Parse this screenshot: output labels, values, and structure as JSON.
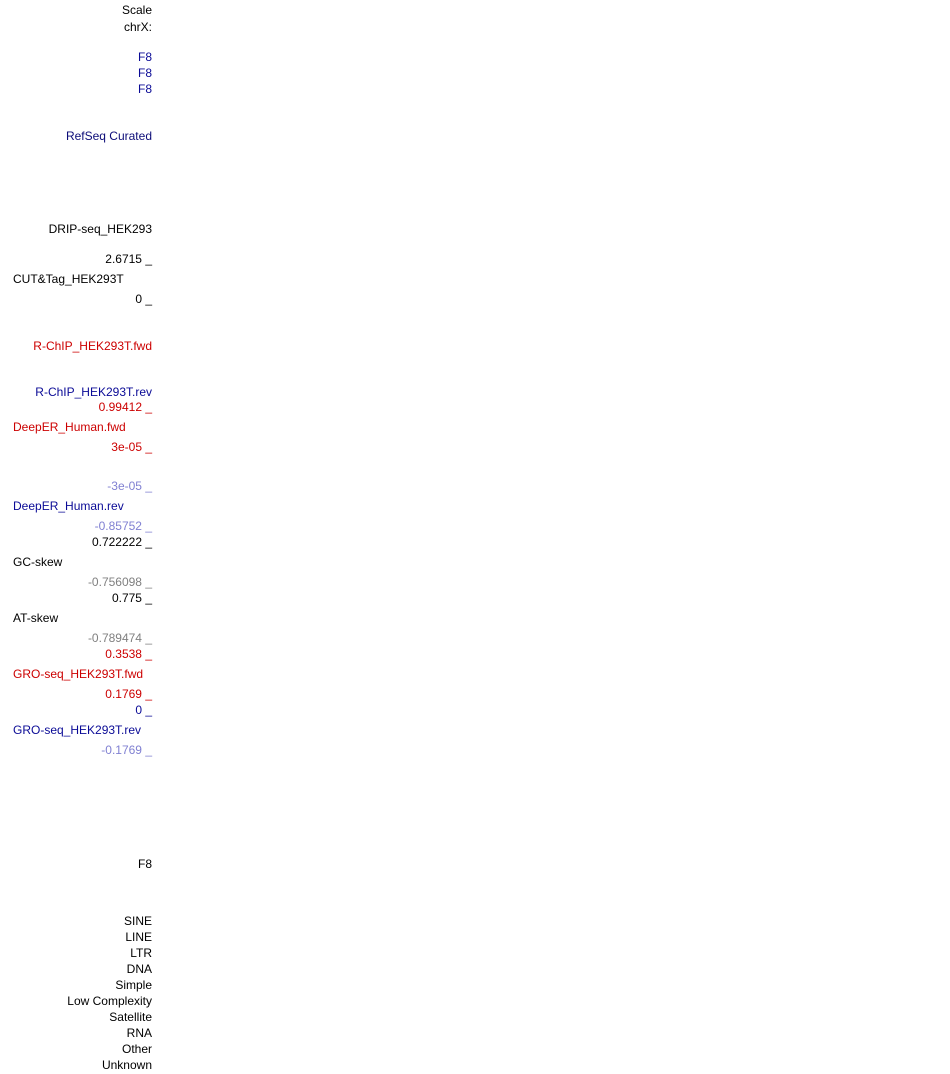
{
  "labels": [
    "Scale",
    "chrX:",
    "F8",
    "F8",
    "F8",
    "RefSeq Curated",
    "DRIP-seq_HEK293",
    "2.6715 _",
    "CUT&Tag_HEK293T",
    "0 _",
    "R-ChIP_HEK293T.fwd",
    "R-ChIP_HEK293T.rev",
    "0.99412 _",
    "DeepER_Human.fwd",
    "3e-05 _",
    "-3e-05 _",
    "DeepER_Human.rev",
    "-0.85752 _",
    "0.722222 _",
    "GC-skew",
    "-0.756098 _",
    "0.775 _",
    "AT-skew",
    "-0.789474 _",
    "0.3538 _",
    "GRO-seq_HEK293T.fwd",
    "0.1769 _",
    "0 _",
    "GRO-seq_HEK293T.rev",
    "-0.1769 _",
    "F8",
    "SINE",
    "LINE",
    "LTR",
    "DNA",
    "Simple",
    "Low Complexity",
    "Satellite",
    "RNA",
    "Other",
    "Unknown"
  ]
}
